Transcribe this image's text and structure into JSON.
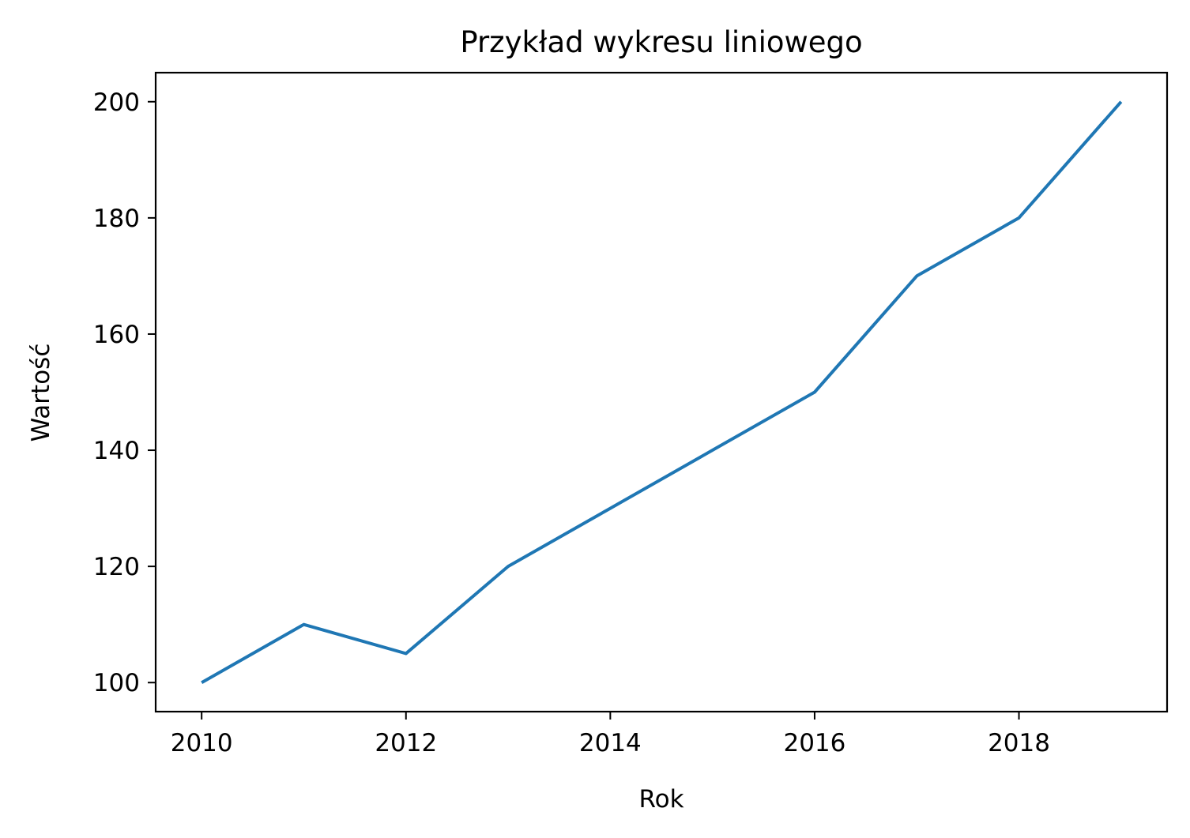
{
  "chart_data": {
    "type": "line",
    "title": "Przykład wykresu liniowego",
    "xlabel": "Rok",
    "ylabel": "Wartość",
    "xlim": [
      2009.55,
      2019.45
    ],
    "ylim": [
      95,
      205
    ],
    "x_ticks": [
      2010,
      2012,
      2014,
      2016,
      2018
    ],
    "y_ticks": [
      100,
      120,
      140,
      160,
      180,
      200
    ],
    "grid": false,
    "legend": "none",
    "series": [
      {
        "color": "#1f77b4",
        "x": [
          2010,
          2011,
          2012,
          2013,
          2014,
          2015,
          2016,
          2017,
          2018,
          2019
        ],
        "y": [
          100,
          110,
          105,
          120,
          130,
          140,
          150,
          170,
          180,
          200
        ]
      }
    ]
  }
}
